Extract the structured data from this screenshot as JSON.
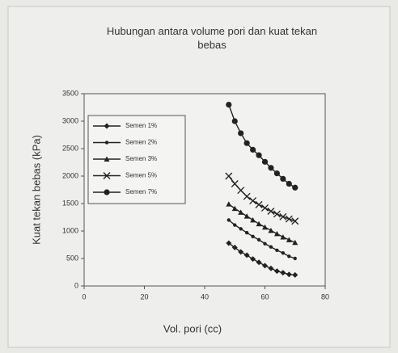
{
  "chart_data": {
    "type": "line",
    "title": "Hubungan antara volume pori dan kuat tekan bebas",
    "x_label": "Vol. pori (cc)",
    "y_label": "Kuat tekan bebas (kPa)",
    "x": [
      48,
      50,
      52,
      54,
      56,
      58,
      60,
      62,
      64,
      66,
      68,
      70
    ],
    "series": [
      {
        "name": "Semen 1%",
        "color": "#222222",
        "marker": "diamond",
        "values": [
          780,
          700,
          620,
          560,
          490,
          430,
          370,
          320,
          270,
          240,
          210,
          200
        ]
      },
      {
        "name": "Semen 2%",
        "color": "#222222",
        "marker": "dot",
        "values": [
          1200,
          1110,
          1040,
          970,
          900,
          840,
          770,
          710,
          650,
          600,
          540,
          500
        ]
      },
      {
        "name": "Semen 3%",
        "color": "#222222",
        "marker": "triangle",
        "values": [
          1490,
          1410,
          1340,
          1270,
          1200,
          1130,
          1070,
          1010,
          950,
          890,
          840,
          790
        ]
      },
      {
        "name": "Semen 5%",
        "color": "#222222",
        "marker": "cross",
        "values": [
          2000,
          1860,
          1740,
          1630,
          1550,
          1480,
          1420,
          1360,
          1310,
          1260,
          1220,
          1180
        ]
      },
      {
        "name": "Semen 7%",
        "color": "#222222",
        "marker": "circle",
        "values": [
          3300,
          3000,
          2780,
          2600,
          2480,
          2380,
          2260,
          2150,
          2050,
          1950,
          1860,
          1790
        ]
      }
    ],
    "xlim": [
      0,
      80
    ],
    "xticks": [
      0,
      20,
      40,
      60,
      80
    ],
    "ylim": [
      0,
      3500
    ],
    "yticks": [
      0,
      500,
      1000,
      1500,
      2000,
      2500,
      3000,
      3500
    ],
    "legend": "upper left"
  }
}
